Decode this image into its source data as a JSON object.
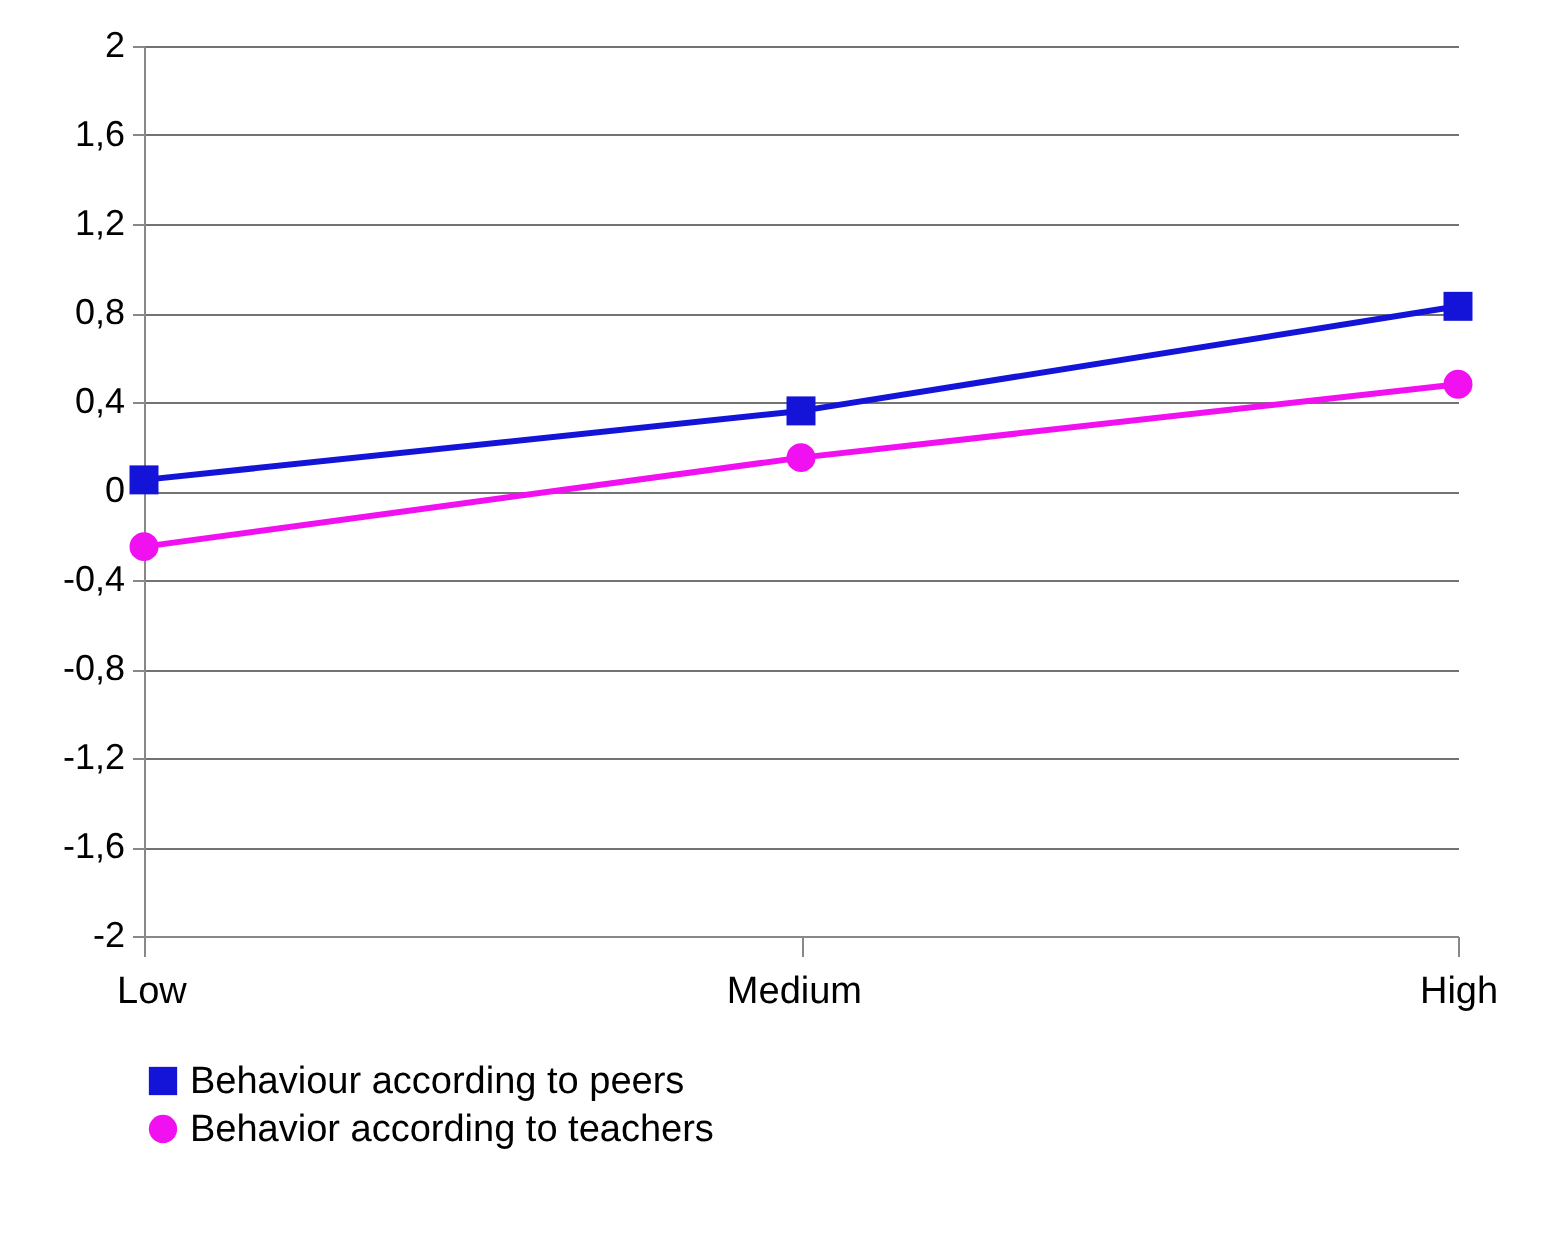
{
  "chart_data": {
    "type": "line",
    "categories": [
      "Low",
      "Medium",
      "High"
    ],
    "series": [
      {
        "name": "Behaviour according to peers",
        "color": "#1414d8",
        "marker": "square",
        "values": [
          0.05,
          0.36,
          0.83
        ]
      },
      {
        "name": "Behavior according to teachers",
        "color": "#f010f0",
        "marker": "circle",
        "values": [
          -0.25,
          0.15,
          0.48
        ]
      }
    ],
    "ylim": [
      -2,
      2
    ],
    "yticks": [
      {
        "value": -2,
        "label": "-2"
      },
      {
        "value": -1.6,
        "label": "-1,6"
      },
      {
        "value": -1.2,
        "label": "-1,2"
      },
      {
        "value": -0.8,
        "label": "-0,8"
      },
      {
        "value": -0.4,
        "label": "-0,4"
      },
      {
        "value": 0,
        "label": "0"
      },
      {
        "value": 0.4,
        "label": "0,4"
      },
      {
        "value": 0.8,
        "label": "0,8"
      },
      {
        "value": 1.2,
        "label": "1,2"
      },
      {
        "value": 1.6,
        "label": "1,6"
      },
      {
        "value": 2,
        "label": "2"
      }
    ],
    "grid": "y",
    "legend": "bottom",
    "line_style": "solid"
  }
}
